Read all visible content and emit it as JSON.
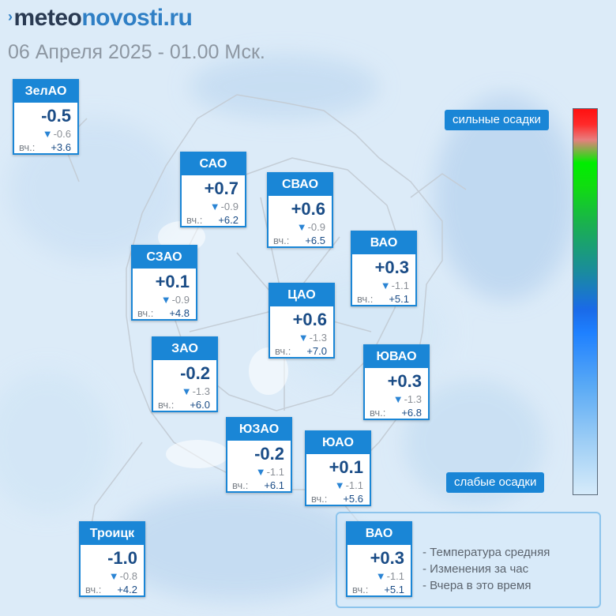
{
  "header": {
    "logo_prefix": "meteo",
    "logo_suffix": "novosti.ru",
    "date_line": "06 Апреля 2025 - 01.00 Мск."
  },
  "districts": [
    {
      "name": "ЗелАО",
      "temp": "-0.5",
      "change": "-0.6",
      "yesterday_label": "вч.:",
      "yesterday": "+3.6"
    },
    {
      "name": "САО",
      "temp": "+0.7",
      "change": "-0.9",
      "yesterday_label": "вч.:",
      "yesterday": "+6.2"
    },
    {
      "name": "СВАО",
      "temp": "+0.6",
      "change": "-0.9",
      "yesterday_label": "вч.:",
      "yesterday": "+6.5"
    },
    {
      "name": "ВАО",
      "temp": "+0.3",
      "change": "-1.1",
      "yesterday_label": "вч.:",
      "yesterday": "+5.1"
    },
    {
      "name": "СЗАО",
      "temp": "+0.1",
      "change": "-0.9",
      "yesterday_label": "вч.:",
      "yesterday": "+4.8"
    },
    {
      "name": "ЦАО",
      "temp": "+0.6",
      "change": "-1.3",
      "yesterday_label": "вч.:",
      "yesterday": "+7.0"
    },
    {
      "name": "ЗАО",
      "temp": "-0.2",
      "change": "-1.3",
      "yesterday_label": "вч.:",
      "yesterday": "+6.0"
    },
    {
      "name": "ЮВАО",
      "temp": "+0.3",
      "change": "-1.3",
      "yesterday_label": "вч.:",
      "yesterday": "+6.8"
    },
    {
      "name": "ЮЗАО",
      "temp": "-0.2",
      "change": "-1.1",
      "yesterday_label": "вч.:",
      "yesterday": "+6.1"
    },
    {
      "name": "ЮАО",
      "temp": "+0.1",
      "change": "-1.1",
      "yesterday_label": "вч.:",
      "yesterday": "+5.6"
    },
    {
      "name": "Троицк",
      "temp": "-1.0",
      "change": "-0.8",
      "yesterday_label": "вч.:",
      "yesterday": "+4.2"
    }
  ],
  "precip_scale": {
    "strong_label": "сильные осадки",
    "weak_label": "слабые осадки",
    "gradient_colors": [
      "#ff1010",
      "#00ee00",
      "#1e80ff",
      "#d6ebfa"
    ]
  },
  "legend": {
    "sample": {
      "name": "ВАО",
      "temp": "+0.3",
      "change": "-1.1",
      "yesterday_label": "вч.:",
      "yesterday": "+5.1"
    },
    "items": [
      "- Температура средняя",
      "- Изменения за час",
      "- Вчера в это время"
    ]
  },
  "icons": {
    "change_indicator": "triangle-down-icon",
    "logo_mark": "chevron-right-icon"
  },
  "colors": {
    "accent": "#1a86d6",
    "temp_text": "#1a4c86",
    "title_gray": "#8d97a2"
  }
}
